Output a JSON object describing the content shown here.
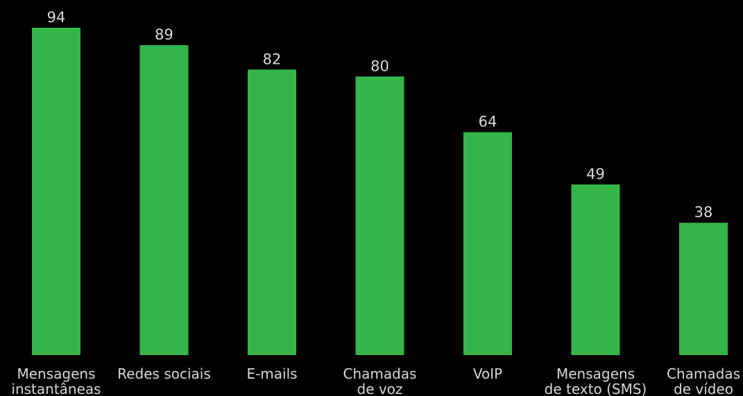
{
  "colors": {
    "background": "#000000",
    "bar": "#33b54a",
    "text": "#d8d8d8"
  },
  "chart_data": {
    "type": "bar",
    "categories": [
      [
        "Mensagens",
        "instantâneas"
      ],
      [
        "Redes sociais"
      ],
      [
        "E-mails"
      ],
      [
        "Chamadas",
        "de voz"
      ],
      [
        "VoIP"
      ],
      [
        "Mensagens",
        "de texto (SMS)"
      ],
      [
        "Chamadas",
        "de vídeo"
      ]
    ],
    "values": [
      94,
      89,
      82,
      80,
      64,
      49,
      38
    ],
    "title": "",
    "xlabel": "",
    "ylabel": "",
    "ylim": [
      0,
      100
    ],
    "grid": false,
    "data_labels": true
  }
}
